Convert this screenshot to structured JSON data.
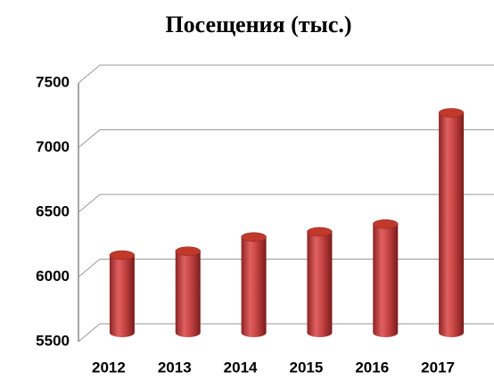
{
  "chart_data": {
    "type": "bar3d",
    "title": "Посещения (тыс.)",
    "categories": [
      "2012",
      "2013",
      "2014",
      "2015",
      "2016",
      "2017"
    ],
    "values": [
      6100,
      6130,
      6240,
      6280,
      6340,
      7200
    ],
    "color": "#c0392b",
    "ylim": [
      5500,
      7500
    ],
    "yticks": [
      5500,
      6000,
      6500,
      7000,
      7500
    ],
    "grid": true
  }
}
